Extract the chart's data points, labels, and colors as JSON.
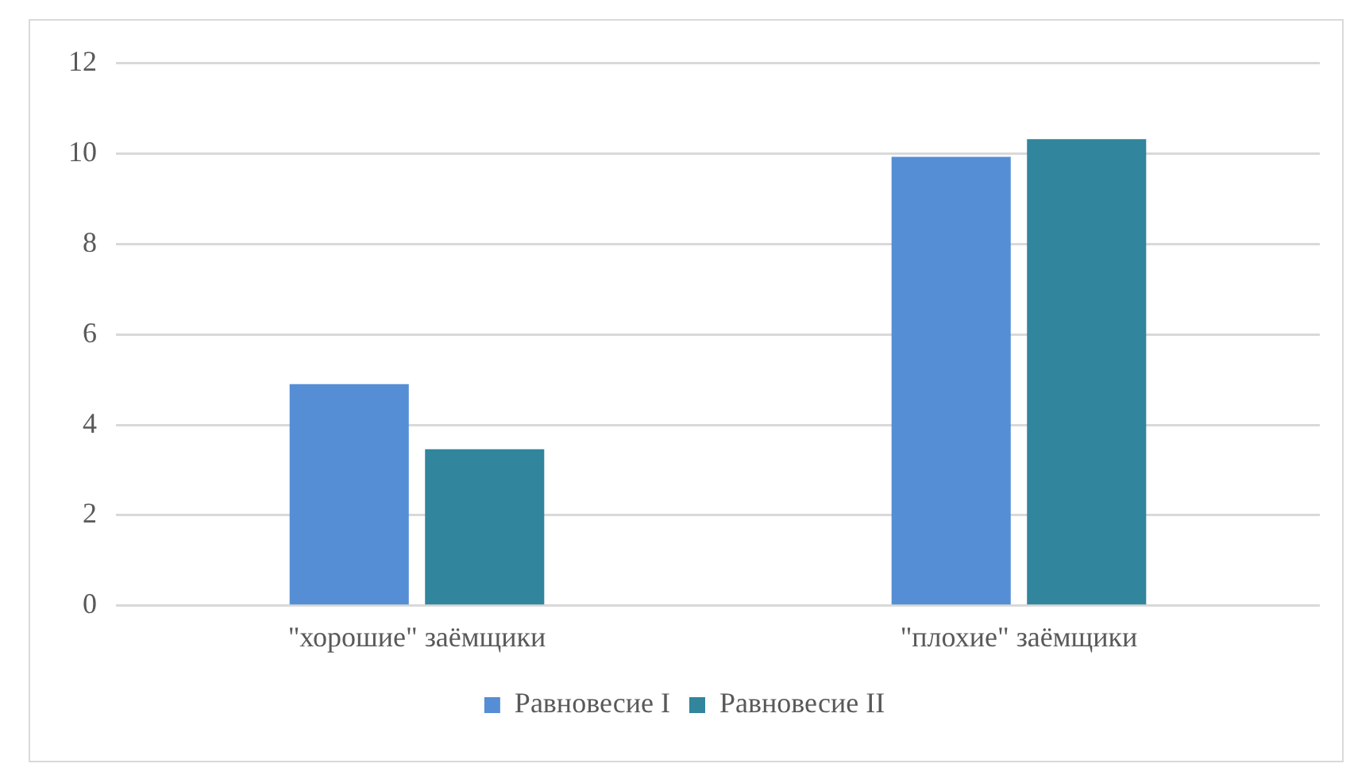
{
  "chart_data": {
    "type": "bar",
    "categories": [
      "\"хорошие\" заёмщики",
      "\"плохие\" заёмщики"
    ],
    "series": [
      {
        "name": "Равновесие I",
        "color": "#558ed5",
        "values": [
          4.9,
          9.93
        ]
      },
      {
        "name": "Равновесие II",
        "color": "#31859c",
        "values": [
          3.46,
          10.32
        ]
      }
    ],
    "ylim": [
      0,
      12
    ],
    "yticks": [
      0,
      2,
      4,
      6,
      8,
      10,
      12
    ],
    "grid": "y",
    "legend": "bottom"
  }
}
